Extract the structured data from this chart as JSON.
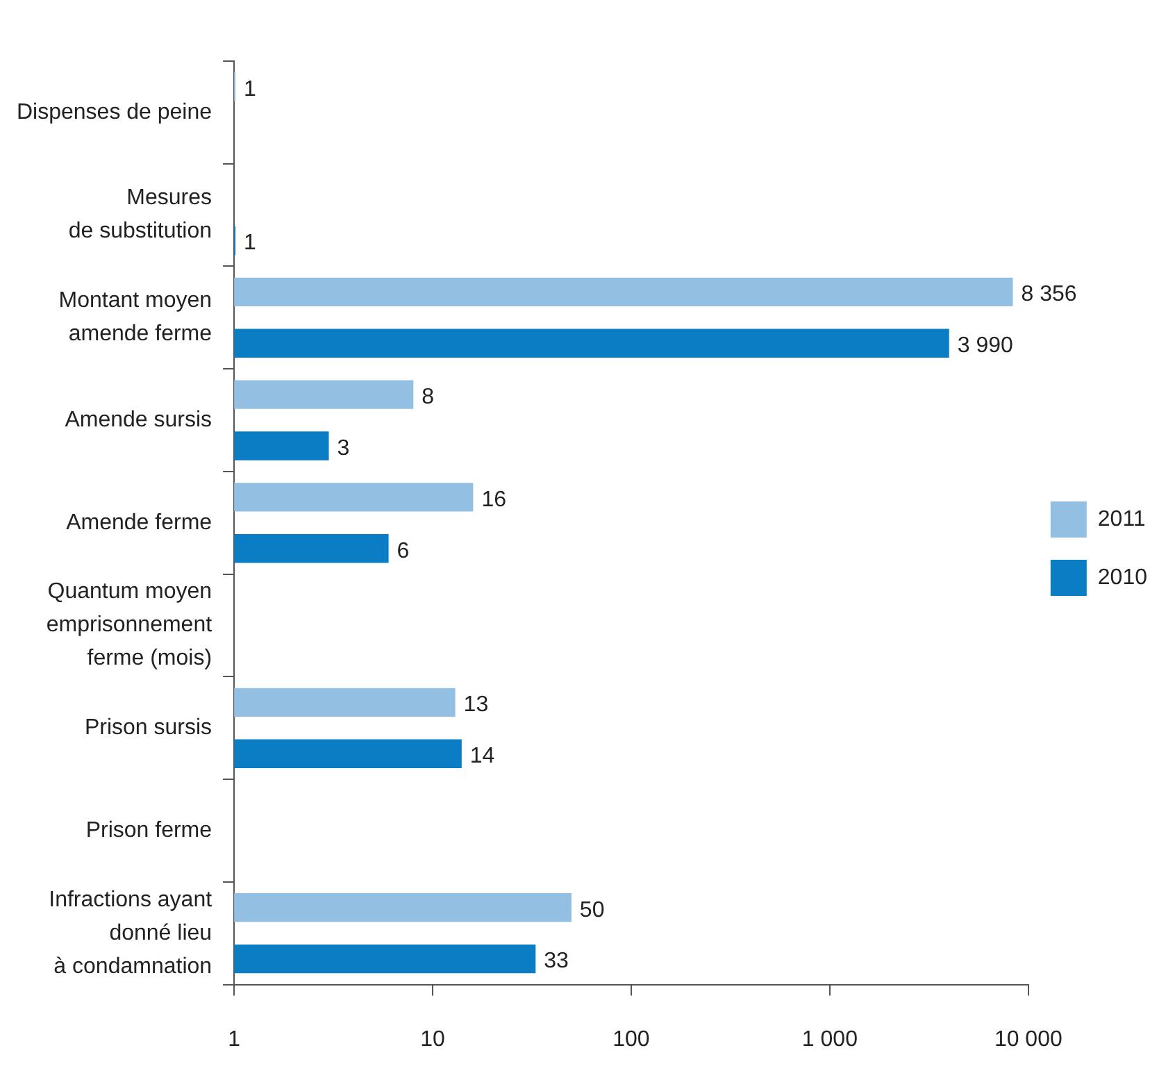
{
  "chart_data": {
    "type": "bar",
    "orientation": "horizontal",
    "categories": [
      "Dispenses de peine",
      "Mesures\nde substitution",
      "Montant moyen\namende ferme",
      "Amende sursis",
      "Amende ferme",
      "Quantum moyen\nemprisonnement\nferme (mois)",
      "Prison sursis",
      "Prison ferme",
      "Infractions ayant\ndonné lieu\nà condamnation"
    ],
    "series": [
      {
        "name": "2011",
        "color": "#93bfe3",
        "values": [
          1,
          null,
          8356,
          8,
          16,
          null,
          13,
          null,
          50
        ],
        "value_labels": [
          "1",
          null,
          "8 356",
          "8",
          "16",
          null,
          "13",
          null,
          "50"
        ]
      },
      {
        "name": "2010",
        "color": "#0a7dc4",
        "values": [
          null,
          1,
          3990,
          3,
          6,
          null,
          14,
          null,
          33
        ],
        "value_labels": [
          null,
          "1",
          "3 990",
          "3",
          "6",
          null,
          "14",
          null,
          "33"
        ]
      }
    ],
    "log": "x",
    "xlim": [
      1,
      10000
    ],
    "xticks": [
      1,
      10,
      100,
      {
        "value": 1000,
        "label": "1 000"
      },
      {
        "value": 10000,
        "label": "10 000"
      }
    ],
    "grid": false,
    "legend": "right"
  }
}
